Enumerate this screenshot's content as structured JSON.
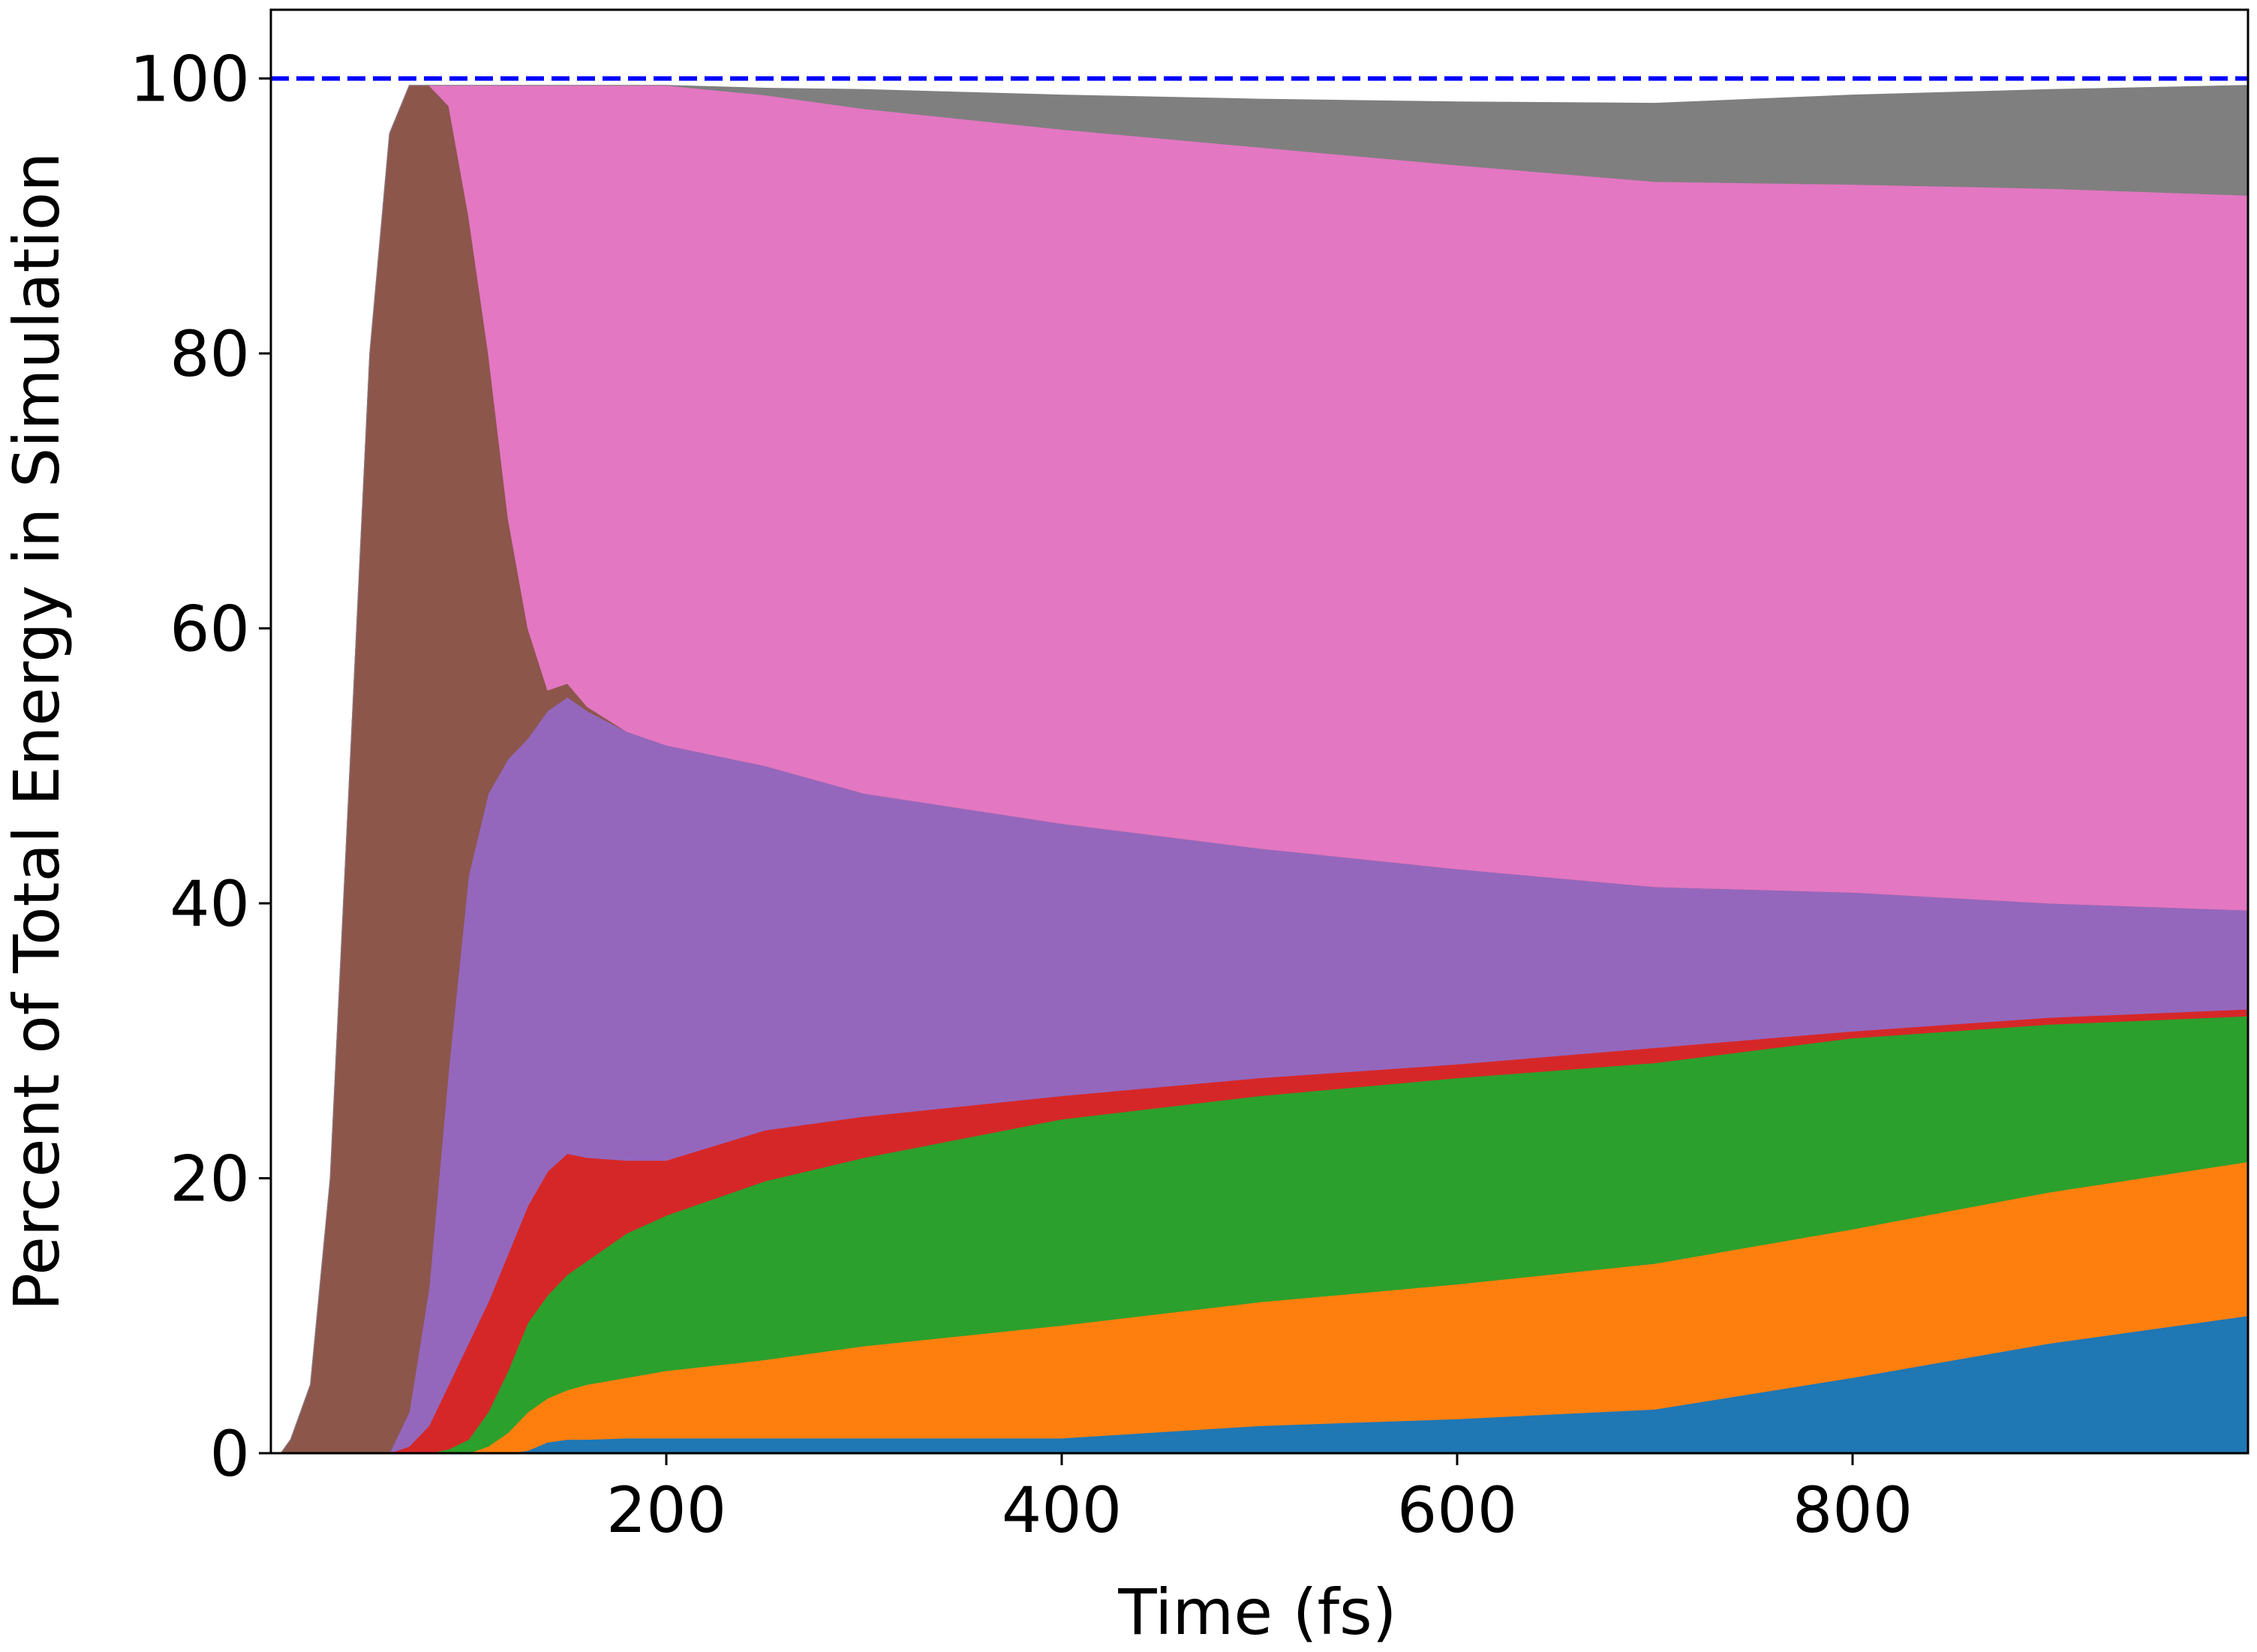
{
  "chart_data": {
    "type": "stacked_area",
    "x_label": "Time (fs)",
    "y_label": "Percent of Total Energy in Simulation",
    "x": [
      5,
      10,
      20,
      30,
      40,
      50,
      60,
      70,
      80,
      90,
      100,
      110,
      120,
      130,
      140,
      150,
      160,
      180,
      200,
      250,
      300,
      400,
      500,
      600,
      700,
      800,
      900,
      1000
    ],
    "series": [
      {
        "color": "#1f77b4",
        "values": [
          0,
          0,
          0,
          0,
          0,
          0,
          0,
          0,
          0,
          0,
          0,
          0,
          0,
          0.2,
          0.8,
          1,
          1,
          1.1,
          1.1,
          1.1,
          1.1,
          1.1,
          2,
          2.5,
          3.2,
          5.5,
          8,
          10
        ]
      },
      {
        "color": "#ff7f0e",
        "values": [
          0,
          0,
          0,
          0,
          0,
          0,
          0,
          0,
          0,
          0,
          0,
          0.5,
          1.5,
          2.8,
          3.2,
          3.6,
          4,
          4.4,
          4.9,
          5.7,
          6.7,
          8.2,
          9,
          9.8,
          10.6,
          10.8,
          11,
          11.2
        ]
      },
      {
        "color": "#2ca02c",
        "values": [
          0,
          0,
          0,
          0,
          0,
          0,
          0,
          0,
          0,
          0.3,
          1,
          2.5,
          4.5,
          6.5,
          7.5,
          8.4,
          9,
          10.5,
          11.3,
          13,
          13.7,
          15,
          15,
          15,
          14.6,
          13.9,
          12.2,
          10.6
        ]
      },
      {
        "color": "#d62728",
        "values": [
          0,
          0,
          0,
          0,
          0,
          0,
          0,
          0.5,
          2,
          4.7,
          7,
          8,
          8.5,
          8.5,
          9,
          8.8,
          7.5,
          5.3,
          4,
          3.7,
          3,
          1.7,
          1.3,
          1,
          1.1,
          0.5,
          0.5,
          0.5
        ]
      },
      {
        "color": "#9467bd",
        "values": [
          0,
          0,
          0,
          0,
          0,
          0,
          0,
          2.5,
          10,
          23,
          34,
          37,
          36,
          34,
          33.5,
          33.2,
          32.5,
          31.2,
          30.2,
          26.5,
          23.5,
          19.8,
          16.7,
          14.2,
          11.7,
          10.1,
          8.3,
          7.2
        ]
      },
      {
        "color": "#8c564b",
        "values": [
          0,
          1,
          5,
          20,
          50,
          80,
          96,
          96.5,
          87.5,
          70,
          48,
          32,
          17.5,
          8,
          1.5,
          1,
          0.3,
          0,
          0,
          0,
          0,
          0,
          0,
          0,
          0,
          0,
          0,
          0
        ]
      },
      {
        "color": "#e377c2",
        "values": [
          0,
          0,
          0,
          0,
          0,
          0,
          0,
          0,
          0,
          1.5,
          9.5,
          19.5,
          31.5,
          39.5,
          44,
          43.5,
          45.2,
          47,
          48,
          48.8,
          49.8,
          50.5,
          51,
          51.2,
          51.3,
          51.5,
          52,
          52
        ]
      },
      {
        "color": "#7f7f7f",
        "values": [
          0,
          0,
          0,
          0,
          0,
          0,
          0,
          0,
          0,
          0,
          0,
          0,
          0,
          0,
          0,
          0,
          0,
          0,
          0,
          0.5,
          1.4,
          2.5,
          3.5,
          4.6,
          5.7,
          6.5,
          7.2,
          8
        ]
      }
    ],
    "hline": {
      "value": 100,
      "color": "#0000ff"
    },
    "xlim": [
      0,
      1000
    ],
    "ylim": [
      0,
      105
    ],
    "xticks": [
      200,
      400,
      600,
      800
    ],
    "yticks": [
      0,
      20,
      40,
      60,
      80,
      100
    ]
  }
}
